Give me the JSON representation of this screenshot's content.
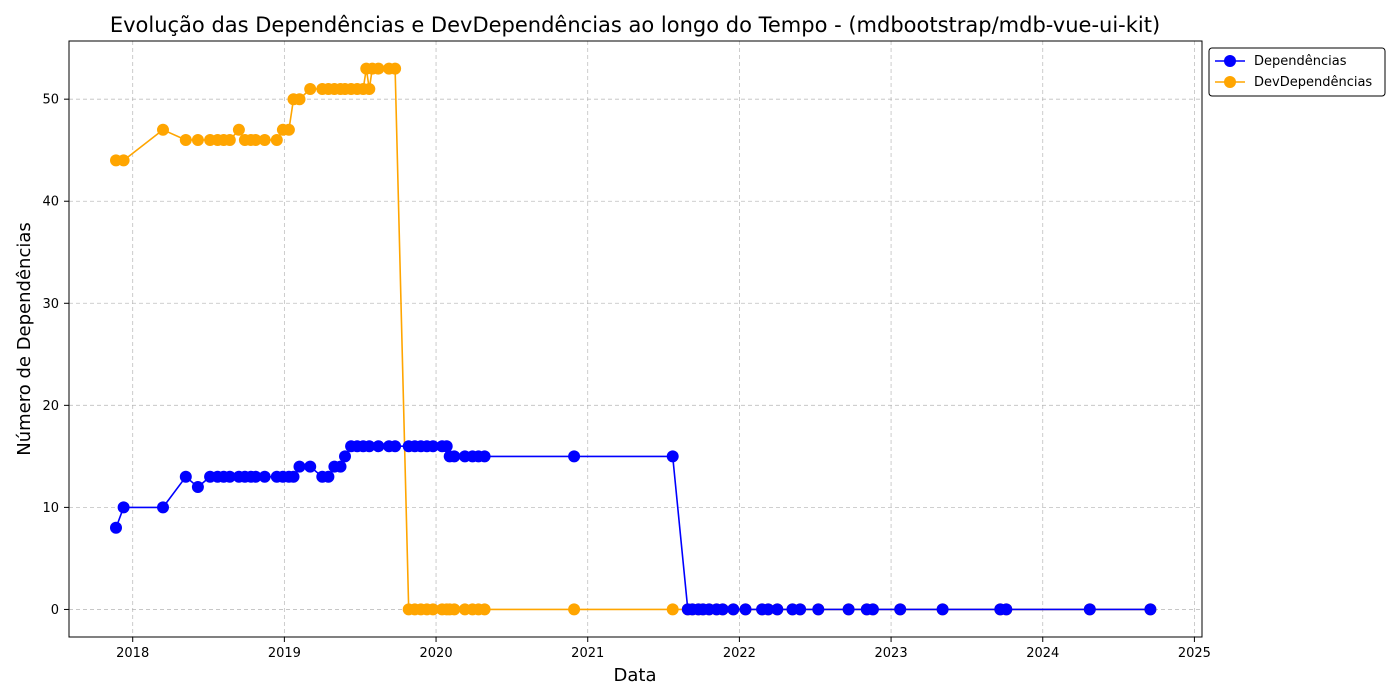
{
  "chart_data": {
    "type": "line",
    "title": "Evolução das Dependências e DevDependências ao longo do Tempo - (mdbootstrap/mdb-vue-ui-kit)",
    "xlabel": "Data",
    "ylabel": "Número de Dependências",
    "xlim": [
      2017.58,
      2025.05
    ],
    "ylim": [
      -2.7,
      55.7
    ],
    "x_ticks": [
      2018,
      2019,
      2020,
      2021,
      2022,
      2023,
      2024,
      2025
    ],
    "x_tick_labels": [
      "2018",
      "2019",
      "2020",
      "2021",
      "2022",
      "2023",
      "2024",
      "2025"
    ],
    "y_ticks": [
      0,
      10,
      20,
      30,
      40,
      50
    ],
    "y_tick_labels": [
      "0",
      "10",
      "20",
      "30",
      "40",
      "50"
    ],
    "grid": true,
    "legend_position": "outside-top-right",
    "series": [
      {
        "name": "Dependências",
        "color": "#0000ff",
        "points": [
          [
            2017.89,
            8
          ],
          [
            2017.94,
            10
          ],
          [
            2018.2,
            10
          ],
          [
            2018.35,
            13
          ],
          [
            2018.43,
            12
          ],
          [
            2018.51,
            13
          ],
          [
            2018.56,
            13
          ],
          [
            2018.6,
            13
          ],
          [
            2018.64,
            13
          ],
          [
            2018.7,
            13
          ],
          [
            2018.74,
            13
          ],
          [
            2018.78,
            13
          ],
          [
            2018.81,
            13
          ],
          [
            2018.87,
            13
          ],
          [
            2018.95,
            13
          ],
          [
            2018.99,
            13
          ],
          [
            2019.03,
            13
          ],
          [
            2019.06,
            13
          ],
          [
            2019.1,
            14
          ],
          [
            2019.17,
            14
          ],
          [
            2019.25,
            13
          ],
          [
            2019.29,
            13
          ],
          [
            2019.33,
            14
          ],
          [
            2019.37,
            14
          ],
          [
            2019.4,
            15
          ],
          [
            2019.44,
            16
          ],
          [
            2019.48,
            16
          ],
          [
            2019.52,
            16
          ],
          [
            2019.56,
            16
          ],
          [
            2019.62,
            16
          ],
          [
            2019.69,
            16
          ],
          [
            2019.73,
            16
          ],
          [
            2019.82,
            16
          ],
          [
            2019.86,
            16
          ],
          [
            2019.9,
            16
          ],
          [
            2019.94,
            16
          ],
          [
            2019.98,
            16
          ],
          [
            2020.04,
            16
          ],
          [
            2020.07,
            16
          ],
          [
            2020.09,
            15
          ],
          [
            2020.12,
            15
          ],
          [
            2020.19,
            15
          ],
          [
            2020.24,
            15
          ],
          [
            2020.28,
            15
          ],
          [
            2020.32,
            15
          ],
          [
            2020.91,
            15
          ],
          [
            2021.56,
            15
          ],
          [
            2021.66,
            0
          ],
          [
            2021.69,
            0
          ],
          [
            2021.73,
            0
          ],
          [
            2021.76,
            0
          ],
          [
            2021.8,
            0
          ],
          [
            2021.85,
            0
          ],
          [
            2021.89,
            0
          ],
          [
            2021.96,
            0
          ],
          [
            2022.04,
            0
          ],
          [
            2022.15,
            0
          ],
          [
            2022.19,
            0
          ],
          [
            2022.25,
            0
          ],
          [
            2022.35,
            0
          ],
          [
            2022.4,
            0
          ],
          [
            2022.52,
            0
          ],
          [
            2022.72,
            0
          ],
          [
            2022.84,
            0
          ],
          [
            2022.88,
            0
          ],
          [
            2023.06,
            0
          ],
          [
            2023.34,
            0
          ],
          [
            2023.72,
            0
          ],
          [
            2023.76,
            0
          ],
          [
            2024.31,
            0
          ],
          [
            2024.71,
            0
          ]
        ]
      },
      {
        "name": "DevDependências",
        "color": "#ffa500",
        "points": [
          [
            2017.89,
            44
          ],
          [
            2017.94,
            44
          ],
          [
            2018.2,
            47
          ],
          [
            2018.35,
            46
          ],
          [
            2018.43,
            46
          ],
          [
            2018.51,
            46
          ],
          [
            2018.56,
            46
          ],
          [
            2018.6,
            46
          ],
          [
            2018.64,
            46
          ],
          [
            2018.7,
            47
          ],
          [
            2018.74,
            46
          ],
          [
            2018.78,
            46
          ],
          [
            2018.81,
            46
          ],
          [
            2018.87,
            46
          ],
          [
            2018.95,
            46
          ],
          [
            2018.99,
            47
          ],
          [
            2019.03,
            47
          ],
          [
            2019.06,
            50
          ],
          [
            2019.1,
            50
          ],
          [
            2019.17,
            51
          ],
          [
            2019.25,
            51
          ],
          [
            2019.29,
            51
          ],
          [
            2019.33,
            51
          ],
          [
            2019.37,
            51
          ],
          [
            2019.4,
            51
          ],
          [
            2019.44,
            51
          ],
          [
            2019.48,
            51
          ],
          [
            2019.52,
            51
          ],
          [
            2019.54,
            53
          ],
          [
            2019.56,
            51
          ],
          [
            2019.58,
            53
          ],
          [
            2019.62,
            53
          ],
          [
            2019.69,
            53
          ],
          [
            2019.73,
            53
          ],
          [
            2019.82,
            0
          ],
          [
            2019.86,
            0
          ],
          [
            2019.9,
            0
          ],
          [
            2019.94,
            0
          ],
          [
            2019.98,
            0
          ],
          [
            2020.04,
            0
          ],
          [
            2020.07,
            0
          ],
          [
            2020.09,
            0
          ],
          [
            2020.12,
            0
          ],
          [
            2020.19,
            0
          ],
          [
            2020.24,
            0
          ],
          [
            2020.28,
            0
          ],
          [
            2020.32,
            0
          ],
          [
            2020.91,
            0
          ],
          [
            2021.56,
            0
          ],
          [
            2021.66,
            0
          ],
          [
            2021.69,
            0
          ],
          [
            2021.73,
            0
          ],
          [
            2021.76,
            0
          ],
          [
            2021.8,
            0
          ],
          [
            2021.85,
            0
          ],
          [
            2021.89,
            0
          ],
          [
            2021.96,
            0
          ],
          [
            2022.04,
            0
          ],
          [
            2022.15,
            0
          ],
          [
            2022.19,
            0
          ],
          [
            2022.25,
            0
          ],
          [
            2022.35,
            0
          ],
          [
            2022.4,
            0
          ],
          [
            2022.52,
            0
          ],
          [
            2022.72,
            0
          ],
          [
            2022.84,
            0
          ],
          [
            2022.88,
            0
          ],
          [
            2023.06,
            0
          ],
          [
            2023.34,
            0
          ],
          [
            2023.72,
            0
          ],
          [
            2023.76,
            0
          ],
          [
            2024.31,
            0
          ],
          [
            2024.71,
            0
          ]
        ]
      }
    ]
  }
}
